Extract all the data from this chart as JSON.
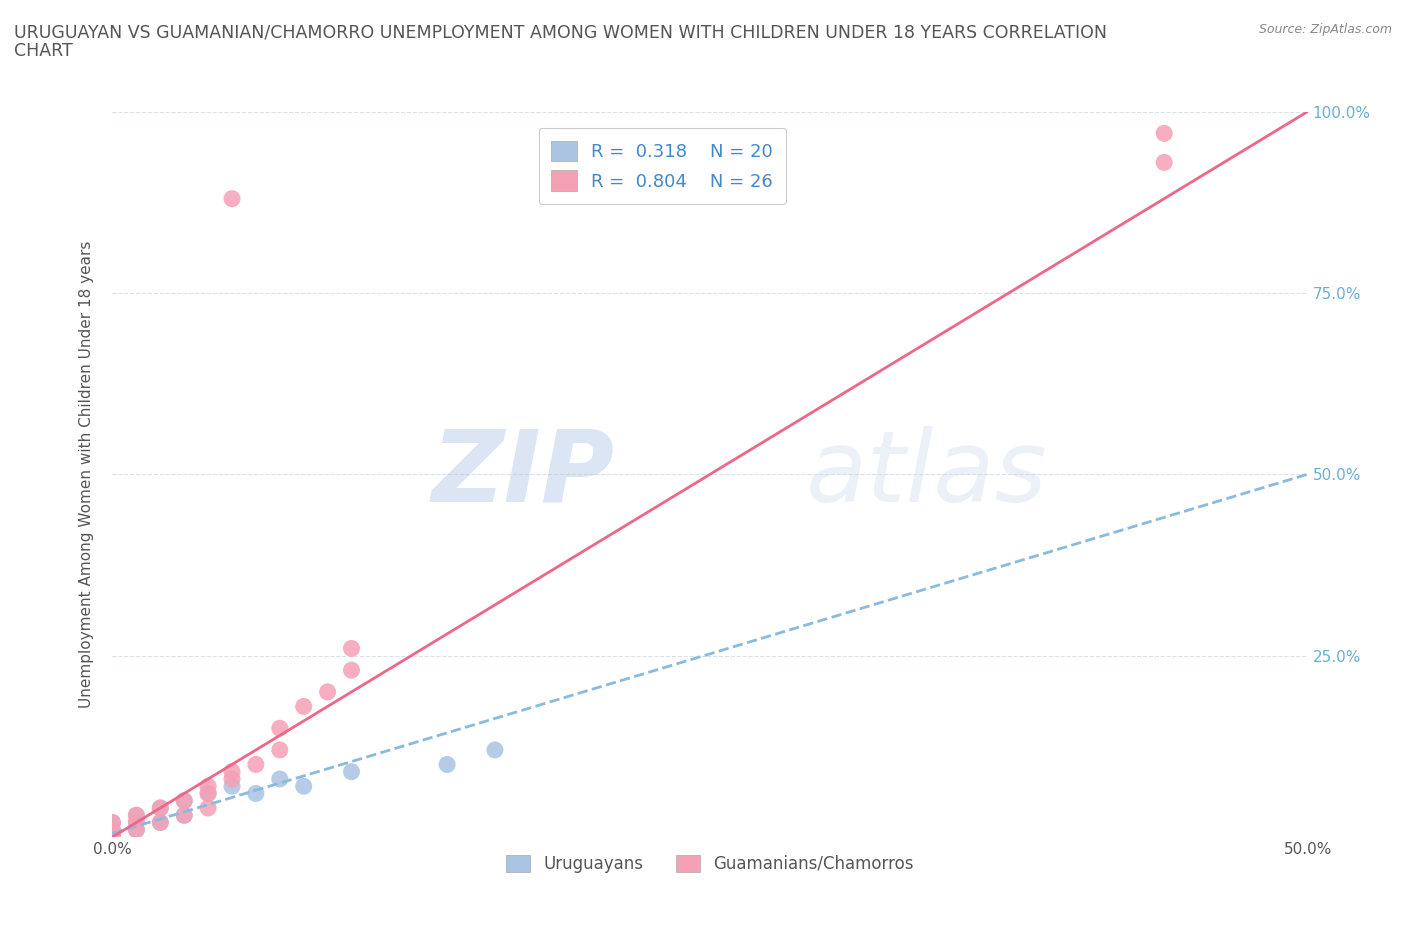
{
  "title_line1": "URUGUAYAN VS GUAMANIAN/CHAMORRO UNEMPLOYMENT AMONG WOMEN WITH CHILDREN UNDER 18 YEARS CORRELATION",
  "title_line2": "CHART",
  "source": "Source: ZipAtlas.com",
  "ylabel": "Unemployment Among Women with Children Under 18 years",
  "watermark_zip": "ZIP",
  "watermark_atlas": "atlas",
  "xlim": [
    0,
    0.5
  ],
  "ylim": [
    0,
    1.0
  ],
  "uruguayan_color": "#aac4e2",
  "guamanian_color": "#f5a0b5",
  "uruguayan_line_color": "#88bbdd",
  "guamanian_line_color": "#ee6688",
  "R_uruguayan": 0.318,
  "N_uruguayan": 20,
  "R_guamanian": 0.804,
  "N_guamanian": 26,
  "legend_label_uruguayan": "Uruguayans",
  "legend_label_guamanian": "Guamanians/Chamorros",
  "uruguayan_scatter_x": [
    0.0,
    0.0,
    0.0,
    0.0,
    0.0,
    0.01,
    0.01,
    0.01,
    0.02,
    0.02,
    0.03,
    0.03,
    0.04,
    0.05,
    0.06,
    0.07,
    0.08,
    0.1,
    0.14,
    0.16
  ],
  "uruguayan_scatter_y": [
    0.0,
    0.0,
    0.0,
    0.01,
    0.02,
    0.01,
    0.02,
    0.03,
    0.02,
    0.04,
    0.03,
    0.05,
    0.06,
    0.07,
    0.06,
    0.08,
    0.07,
    0.09,
    0.1,
    0.12
  ],
  "guamanian_scatter_x": [
    0.0,
    0.0,
    0.0,
    0.0,
    0.01,
    0.01,
    0.01,
    0.02,
    0.02,
    0.03,
    0.03,
    0.04,
    0.04,
    0.04,
    0.05,
    0.05,
    0.06,
    0.07,
    0.07,
    0.08,
    0.09,
    0.1,
    0.1,
    0.05,
    0.44,
    0.44
  ],
  "guamanian_scatter_y": [
    0.0,
    0.0,
    0.01,
    0.02,
    0.01,
    0.02,
    0.03,
    0.02,
    0.04,
    0.03,
    0.05,
    0.04,
    0.06,
    0.07,
    0.08,
    0.09,
    0.1,
    0.12,
    0.15,
    0.18,
    0.2,
    0.23,
    0.26,
    0.88,
    0.93,
    0.97
  ],
  "uruguayan_trendline_x": [
    0.0,
    0.5
  ],
  "uruguayan_trendline_y": [
    0.005,
    0.5
  ],
  "guamanian_trendline_x": [
    0.0,
    0.5
  ],
  "guamanian_trendline_y": [
    0.0,
    1.0
  ],
  "background_color": "#ffffff",
  "grid_color": "#d8e0ec",
  "title_color": "#555555",
  "axis_label_color": "#555555",
  "tick_label_color_right": "#6aaed6",
  "tick_label_color_left": "#555555",
  "title_fontsize": 12.5,
  "axis_label_fontsize": 11,
  "tick_fontsize": 11,
  "legend_fontsize": 13,
  "legend_R_color": "#4488cc",
  "legend_N_color": "#333333"
}
